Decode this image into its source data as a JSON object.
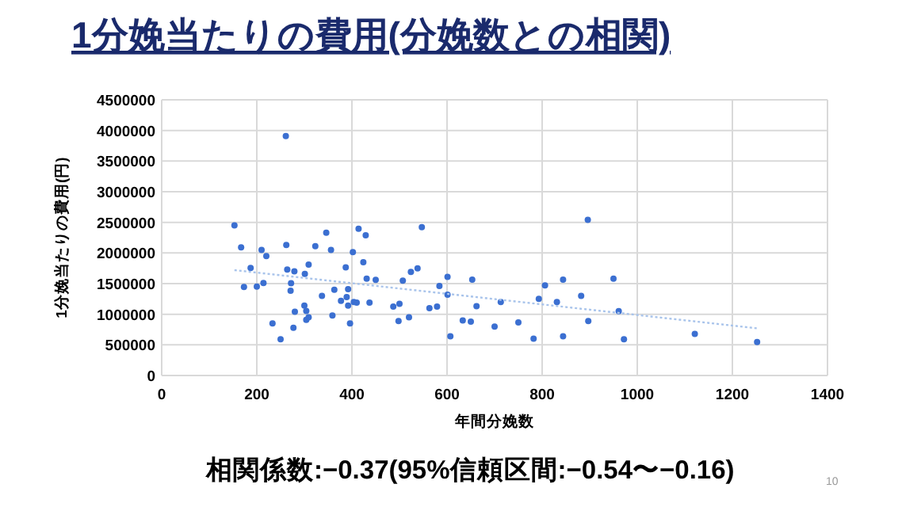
{
  "chart_data": {
    "type": "scatter",
    "title": "1分娩当たりの費用(分娩数との相関)",
    "xlabel": "年間分娩数",
    "ylabel": "1分娩当たりの費用(円)",
    "annotations": [
      "相関係数:−0.37(95%信頼区間:−0.54〜−0.16)",
      "10"
    ],
    "xlim": [
      0,
      1400
    ],
    "xticks": [
      0,
      200,
      400,
      600,
      800,
      1000,
      1200,
      1400
    ],
    "ylim": [
      0,
      4500000
    ],
    "yticks": [
      0,
      500000,
      1000000,
      1500000,
      2000000,
      2500000,
      3000000,
      3500000,
      4000000,
      4500000
    ],
    "grid": true,
    "series": [
      {
        "marker": "circle",
        "color": "#3b6fd1",
        "x": [
          153,
          167,
          173,
          187,
          210,
          220,
          214,
          200,
          233,
          250,
          261,
          262,
          264,
          272,
          271,
          279,
          280,
          277,
          301,
          309,
          300,
          304,
          304,
          309,
          323,
          337,
          346,
          356,
          359,
          363,
          377,
          387,
          389,
          392,
          392,
          396,
          402,
          404,
          410,
          414,
          424,
          429,
          431,
          437,
          450,
          487,
          498,
          500,
          507,
          520,
          524,
          538,
          547,
          563,
          579,
          584,
          601,
          601,
          607,
          633,
          650,
          653,
          662,
          700,
          713,
          750,
          782,
          793,
          806,
          831,
          844,
          844,
          882,
          896,
          897,
          950,
          961,
          972,
          1121,
          1252
        ],
        "values": [
          2450000,
          2090000,
          1445000,
          1755000,
          2050000,
          1950000,
          1510000,
          1450000,
          850000,
          590000,
          3910000,
          2130000,
          1730000,
          1505000,
          1385000,
          1700000,
          1040000,
          780000,
          1660000,
          1810000,
          1140000,
          1055000,
          910000,
          950000,
          2110000,
          1300000,
          2330000,
          2050000,
          980000,
          1400000,
          1220000,
          1765000,
          1280000,
          1140000,
          1410000,
          850000,
          2015000,
          1200000,
          1190000,
          2395000,
          1850000,
          2290000,
          1580000,
          1190000,
          1560000,
          1125000,
          890000,
          1170000,
          1550000,
          950000,
          1690000,
          1750000,
          2420000,
          1100000,
          1125000,
          1460000,
          1610000,
          1320000,
          640000,
          900000,
          880000,
          1565000,
          1130000,
          800000,
          1200000,
          865000,
          600000,
          1250000,
          1470000,
          1200000,
          1565000,
          640000,
          1300000,
          2540000,
          890000,
          1580000,
          1050000,
          590000,
          680000,
          545000
        ]
      },
      {
        "type": "line",
        "color": "#a9c4eb",
        "line_style": "dotted",
        "x": [
          153,
          1252
        ],
        "values": [
          1720000,
          770000
        ]
      }
    ]
  }
}
